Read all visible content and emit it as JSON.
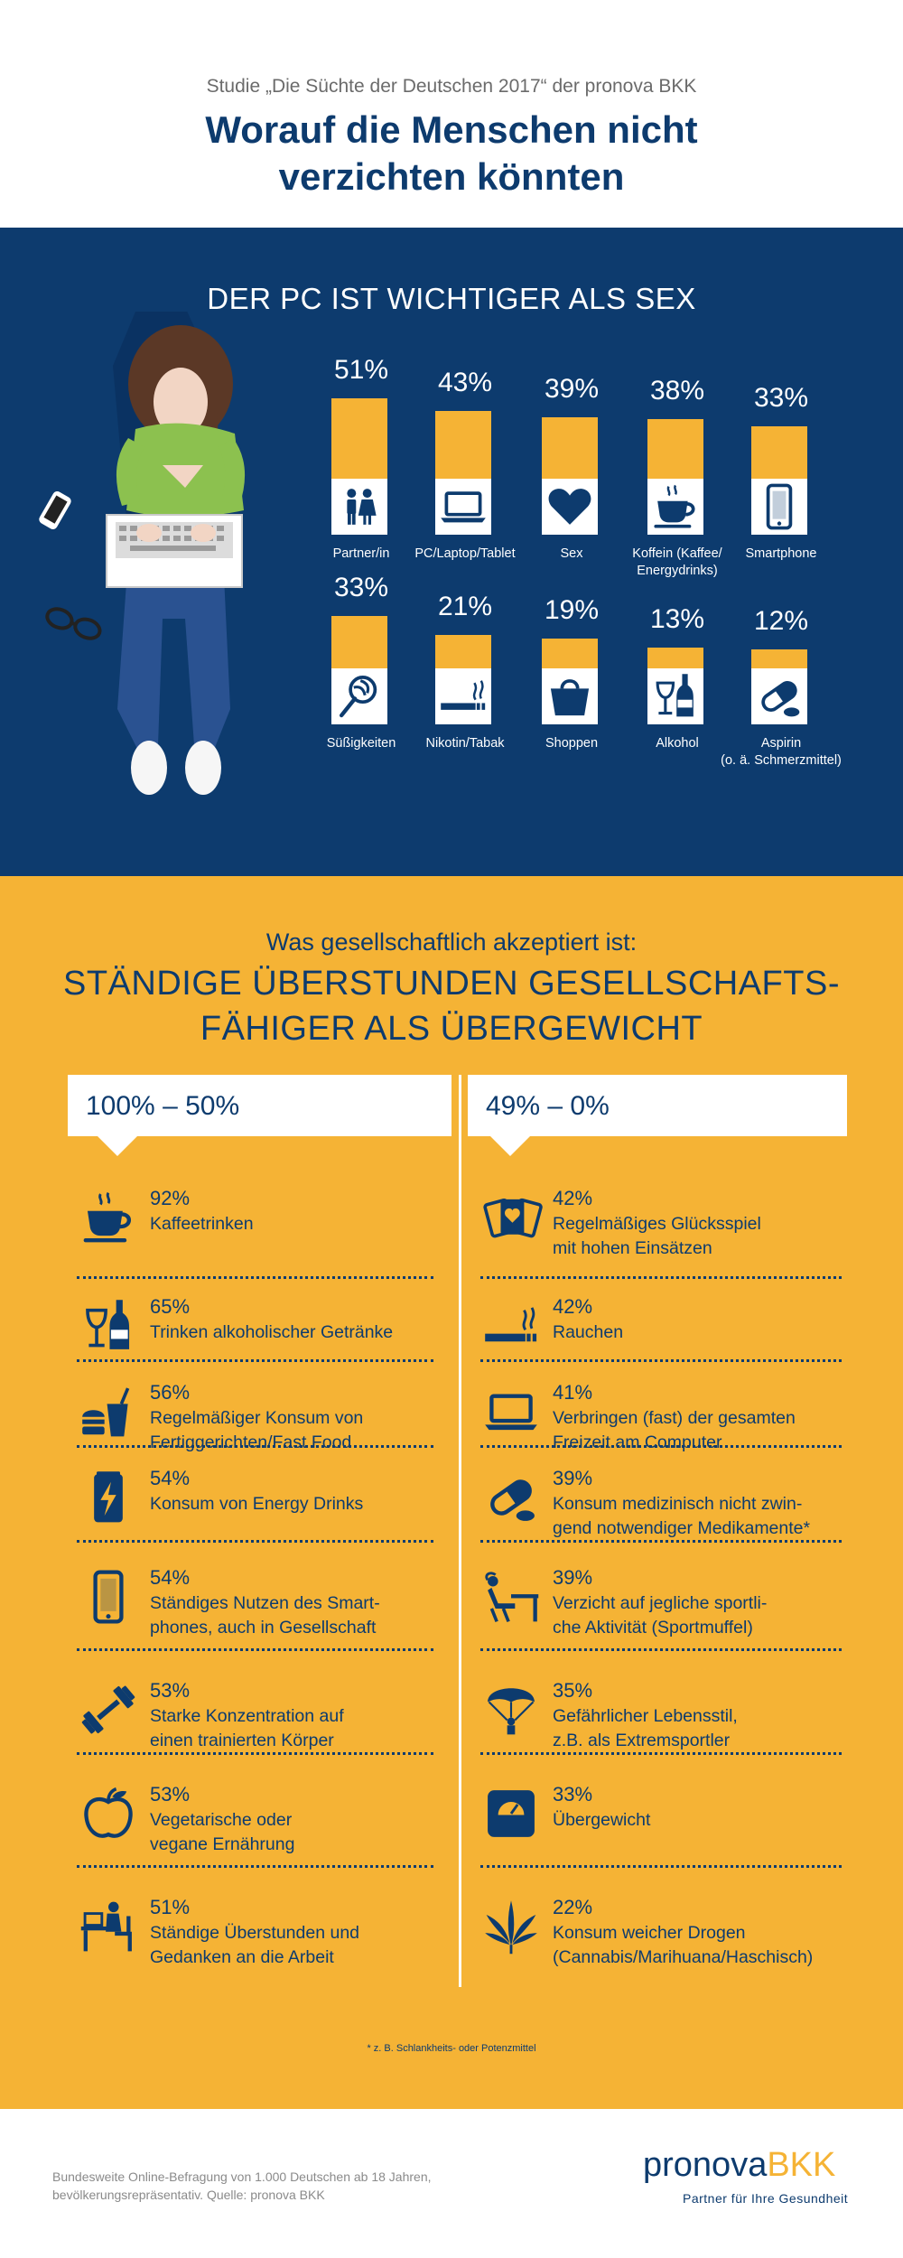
{
  "header": {
    "subtitle": "Studie „Die Süchte der Deutschen 2017“ der pronova BKK",
    "title_line1": "Worauf die Menschen nicht",
    "title_line2": "verzichten könnten"
  },
  "chart_data": [
    {
      "type": "bar",
      "title": "DER PC IST WICHTIGER ALS SEX",
      "ylim": [
        0,
        100
      ],
      "unit": "%",
      "categories": [
        "Partner/in",
        "PC/Laptop/Tablet",
        "Sex",
        "Koffein (Kaffee/\nEnergydrinks)",
        "Smartphone",
        "Süßigkeiten",
        "Nikotin/Tabak",
        "Shoppen",
        "Alkohol",
        "Aspirin\n(o. ä. Schmerzmittel)"
      ],
      "values": [
        51,
        43,
        39,
        38,
        33,
        33,
        21,
        19,
        13,
        12
      ],
      "labels": [
        "51%",
        "43%",
        "39%",
        "38%",
        "33%",
        "33%",
        "21%",
        "19%",
        "13%",
        "12%"
      ],
      "icons": [
        "couple-icon",
        "laptop-icon",
        "heart-icon",
        "coffee-cup-icon",
        "smartphone-icon",
        "lollipop-icon",
        "cigarette-icon",
        "shopping-bag-icon",
        "wine-bottle-icon",
        "pill-icon"
      ],
      "colors": {
        "bar": "#f5b335",
        "background": "#0d3b6e"
      }
    }
  ],
  "section2": {
    "lead": "Was gesellschaftlich akzeptiert ist:",
    "headline_line1": "STÄNDIGE ÜBERSTUNDEN GESELLSCHAFTS-",
    "headline_line2": "FÄHIGER ALS ÜBERGEWICHT",
    "left_header": "100% – 50%",
    "right_header": "49% – 0%",
    "left_items": [
      {
        "pct": "92%",
        "text": "Kaffeetrinken",
        "icon": "coffee-cup-icon"
      },
      {
        "pct": "65%",
        "text": "Trinken alkoholischer Getränke",
        "icon": "wine-bottle-icon"
      },
      {
        "pct": "56%",
        "text": "Regelmäßiger Konsum von\nFertiggerichten/Fast Food",
        "icon": "fast-food-icon"
      },
      {
        "pct": "54%",
        "text": "Konsum von Energy Drinks",
        "icon": "energy-drink-icon"
      },
      {
        "pct": "54%",
        "text": "Ständiges Nutzen des Smart-\nphones, auch in Gesellschaft",
        "icon": "smartphone-icon"
      },
      {
        "pct": "53%",
        "text": "Starke Konzentration auf\neinen trainierten Körper",
        "icon": "dumbbell-icon"
      },
      {
        "pct": "53%",
        "text": "Vegetarische oder\nvegane Ernährung",
        "icon": "apple-icon"
      },
      {
        "pct": "51%",
        "text": "Ständige Überstunden und\nGedanken an die Arbeit",
        "icon": "desk-worker-icon"
      }
    ],
    "right_items": [
      {
        "pct": "42%",
        "text": "Regelmäßiges Glücksspiel\nmit hohen Einsätzen",
        "icon": "playing-cards-icon"
      },
      {
        "pct": "42%",
        "text": "Rauchen",
        "icon": "cigarette-icon"
      },
      {
        "pct": "41%",
        "text": "Verbringen (fast) der gesamten\nFreizeit am Computer",
        "icon": "laptop-icon"
      },
      {
        "pct": "39%",
        "text": "Konsum medizinisch nicht zwin-\ngend notwendiger Medikamente*",
        "icon": "pill-icon"
      },
      {
        "pct": "39%",
        "text": "Verzicht auf jegliche sportli-\nche Aktivität (Sportmuffel)",
        "icon": "lazy-person-icon"
      },
      {
        "pct": "35%",
        "text": "Gefährlicher Lebensstil,\nz.B. als Extremsportler",
        "icon": "parachute-icon"
      },
      {
        "pct": "33%",
        "text": "Übergewicht",
        "icon": "scale-icon"
      },
      {
        "pct": "22%",
        "text": "Konsum weicher Drogen\n(Cannabis/Marihuana/Haschisch)",
        "icon": "cannabis-leaf-icon"
      }
    ],
    "footnote": "* z. B. Schlankheits- oder Potenzmittel"
  },
  "footer": {
    "source": "Bundesweite Online-Befragung von 1.000 Deutschen ab 18 Jahren,\nbevölkerungsrepräsentativ. Quelle: pronova BKK",
    "logo_part1": "pronova",
    "logo_part2": "BKK",
    "tagline": "Partner für Ihre Gesundheit"
  }
}
